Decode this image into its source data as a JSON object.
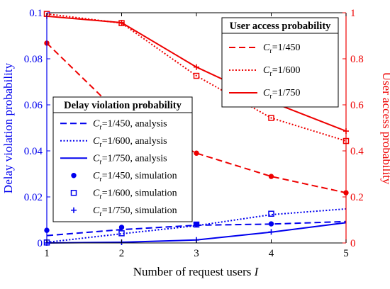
{
  "chart_data": {
    "type": "line",
    "xlabel": "Number of request users ",
    "xlabel_var": "I",
    "ylabel_left": "Delay violation probability",
    "ylabel_right": "User access probability",
    "xlim": [
      1,
      5
    ],
    "ylim_left": [
      0,
      0.1
    ],
    "ylim_right": [
      0,
      1
    ],
    "x_ticks": [
      1,
      2,
      3,
      4,
      5
    ],
    "y_left_ticks": [
      0,
      0.02,
      0.04,
      0.06,
      0.08,
      0.1
    ],
    "y_left_tick_labels": [
      "0",
      "0.02",
      "0.04",
      "0.06",
      "0.08",
      "0.1"
    ],
    "y_right_ticks": [
      0,
      0.2,
      0.4,
      0.6,
      0.8,
      1
    ],
    "y_right_tick_labels": [
      "0",
      "0.2",
      "0.4",
      "0.6",
      "0.8",
      "1"
    ],
    "grid": false,
    "colors": {
      "left_axis": "#0000ee",
      "right_axis": "#ee0000",
      "frame": "#000000"
    },
    "x": [
      1,
      2,
      3,
      4,
      5
    ],
    "delay_series": [
      {
        "kind": "analysis",
        "dash": "dashed",
        "values": [
          0.0032,
          0.0058,
          0.0077,
          0.0082,
          0.0093
        ]
      },
      {
        "kind": "analysis",
        "dash": "dotted",
        "values": [
          0.0003,
          0.004,
          0.0075,
          0.0123,
          0.0148
        ]
      },
      {
        "kind": "analysis",
        "dash": "solid",
        "values": [
          0.0,
          0.0003,
          0.0013,
          0.0047,
          0.0088
        ]
      },
      {
        "kind": "simulation",
        "marker": "circle",
        "values": [
          0.0055,
          0.0068,
          0.0081,
          0.0083,
          null
        ]
      },
      {
        "kind": "simulation",
        "marker": "square",
        "values": [
          0.0002,
          0.0042,
          0.008,
          0.0127,
          null
        ]
      },
      {
        "kind": "simulation",
        "marker": "plus",
        "values": [
          0.0,
          0.0003,
          0.0013,
          0.0048,
          null
        ]
      }
    ],
    "access_series": [
      {
        "dash": "dashed",
        "marker": "circle",
        "values": [
          0.868,
          0.552,
          0.39,
          0.289,
          0.218
        ]
      },
      {
        "dash": "dotted",
        "marker": "square",
        "values": [
          0.995,
          0.955,
          0.726,
          0.543,
          0.443
        ]
      },
      {
        "dash": "solid",
        "marker": "plus",
        "values": [
          0.985,
          0.957,
          0.764,
          0.613,
          0.486
        ]
      }
    ],
    "legend_delay": {
      "title": "Delay violation  probability",
      "placement": "lower-left",
      "entries": [
        {
          "cvar": "C",
          "sub": "r",
          "label": "=1/450, analysis"
        },
        {
          "cvar": "C",
          "sub": "r",
          "label": "=1/600, analysis"
        },
        {
          "cvar": "C",
          "sub": "r",
          "label": "=1/750, analysis"
        },
        {
          "cvar": "C",
          "sub": "r",
          "label": "=1/450, simulation"
        },
        {
          "cvar": "C",
          "sub": "r",
          "label": "=1/600, simulation"
        },
        {
          "cvar": "C",
          "sub": "r",
          "label": "=1/750, simulation"
        }
      ]
    },
    "legend_access": {
      "title": "User access probability",
      "placement": "top-right",
      "entries": [
        {
          "cvar": "C",
          "sub": "r",
          "label": "=1/450"
        },
        {
          "cvar": "C",
          "sub": "r",
          "label": "=1/600"
        },
        {
          "cvar": "C",
          "sub": "r",
          "label": "=1/750"
        }
      ]
    }
  }
}
